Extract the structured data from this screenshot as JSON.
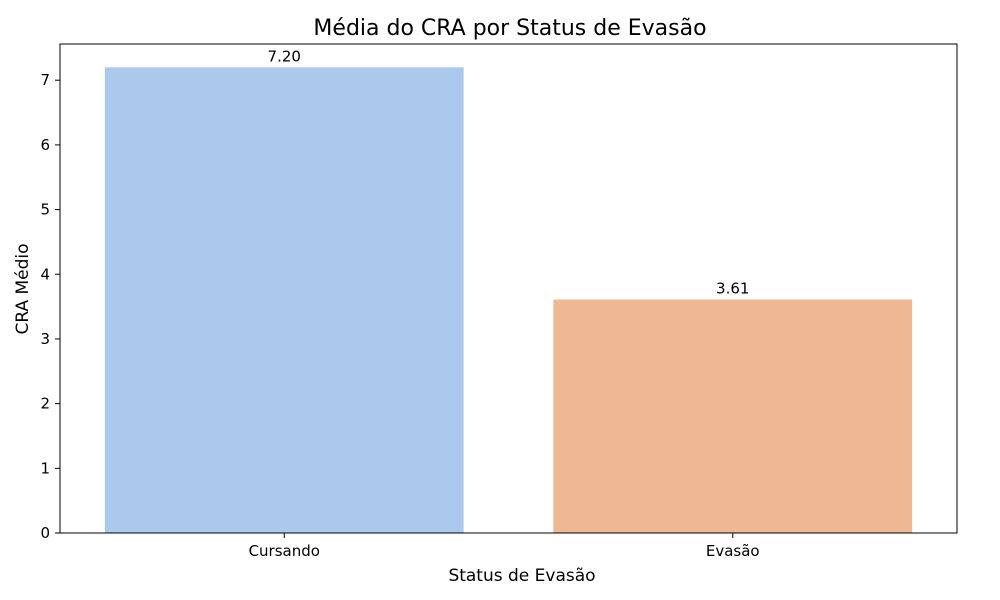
{
  "chart_data": {
    "type": "bar",
    "title": "Média do CRA por Status de Evasão",
    "xlabel": "Status de Evasão",
    "ylabel": "CRA Médio",
    "categories": [
      "Cursando",
      "Evasão"
    ],
    "values": [
      7.2,
      3.61
    ],
    "data_labels": [
      "7.20",
      "3.61"
    ],
    "colors": [
      "#abc9ec",
      "#f0b793"
    ],
    "yticks": [
      0,
      1,
      2,
      3,
      4,
      5,
      6,
      7
    ],
    "ylim": [
      0,
      7.56
    ],
    "grid": false,
    "legend": "none"
  }
}
